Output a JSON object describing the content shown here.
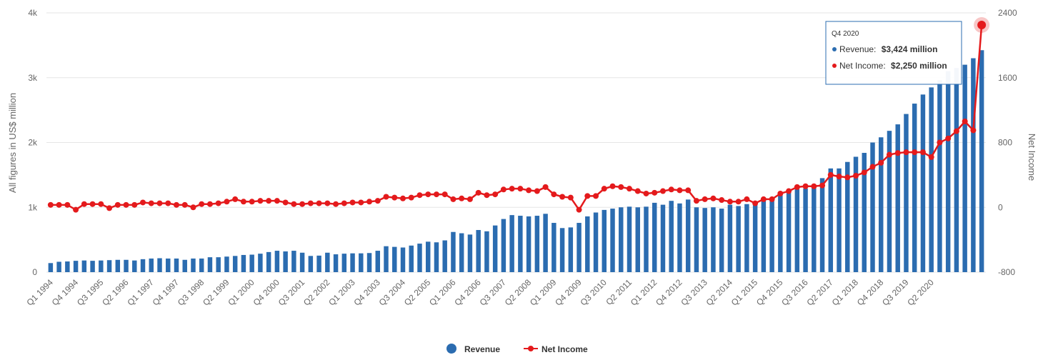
{
  "chart_data": {
    "type": "bar+line",
    "title": "",
    "y_left_label": "All figures in US$ million",
    "y_right_label": "Net Income",
    "y_left_ticks": [
      "0",
      "1k",
      "2k",
      "3k",
      "4k"
    ],
    "y_left_range": [
      0,
      4000
    ],
    "y_right_ticks": [
      "-800",
      "0",
      "800",
      "1600",
      "2400"
    ],
    "y_right_range": [
      -800,
      2400
    ],
    "grid": true,
    "legend_position": "bottom-center",
    "colors": {
      "revenue": "#2b6cb0",
      "net_income": "#e41a1c",
      "grid": "#e6e6e6"
    },
    "x_tick_labels": [
      "Q1 1994",
      "Q4 1994",
      "Q3 1995",
      "Q2 1996",
      "Q1 1997",
      "Q4 1997",
      "Q3 1998",
      "Q2 1999",
      "Q1 2000",
      "Q4 2000",
      "Q3 2001",
      "Q2 2002",
      "Q1 2003",
      "Q4 2003",
      "Q3 2004",
      "Q2 2005",
      "Q1 2006",
      "Q4 2006",
      "Q3 2007",
      "Q2 2008",
      "Q1 2009",
      "Q4 2009",
      "Q3 2010",
      "Q2 2011",
      "Q1 2012",
      "Q4 2012",
      "Q3 2013",
      "Q2 2014",
      "Q1 2015",
      "Q4 2015",
      "Q3 2016",
      "Q2 2017",
      "Q1 2018",
      "Q4 2018",
      "Q3 2019",
      "Q2 2020"
    ],
    "series": [
      {
        "name": "Revenue",
        "axis": "left",
        "kind": "bar",
        "values": [
          140,
          160,
          165,
          175,
          180,
          175,
          180,
          185,
          190,
          190,
          180,
          200,
          210,
          215,
          210,
          210,
          190,
          210,
          210,
          230,
          230,
          240,
          250,
          265,
          270,
          285,
          310,
          330,
          320,
          330,
          300,
          250,
          255,
          300,
          275,
          285,
          290,
          290,
          295,
          330,
          400,
          390,
          380,
          410,
          440,
          470,
          460,
          490,
          620,
          600,
          580,
          650,
          630,
          720,
          820,
          880,
          870,
          860,
          870,
          900,
          760,
          680,
          690,
          760,
          860,
          920,
          960,
          980,
          1000,
          1010,
          1000,
          1010,
          1070,
          1040,
          1100,
          1060,
          1120,
          1000,
          990,
          1000,
          980,
          1040,
          1020,
          1050,
          1080,
          1110,
          1150,
          1200,
          1240,
          1280,
          1290,
          1350,
          1450,
          1600,
          1600,
          1700,
          1780,
          1840,
          2000,
          2080,
          2180,
          2280,
          2440,
          2600,
          2740,
          2850,
          2960,
          3100,
          3150,
          3200,
          3300,
          3424
        ]
      },
      {
        "name": "Net Income",
        "axis": "right",
        "kind": "line",
        "values": [
          30,
          30,
          30,
          -30,
          40,
          40,
          40,
          -10,
          30,
          30,
          30,
          60,
          50,
          50,
          50,
          30,
          30,
          0,
          40,
          40,
          50,
          70,
          100,
          70,
          70,
          80,
          80,
          80,
          60,
          40,
          40,
          50,
          50,
          50,
          40,
          50,
          60,
          60,
          70,
          80,
          130,
          120,
          110,
          120,
          150,
          160,
          160,
          160,
          100,
          110,
          100,
          180,
          150,
          160,
          220,
          230,
          230,
          210,
          200,
          250,
          160,
          130,
          120,
          -30,
          140,
          140,
          230,
          260,
          250,
          230,
          200,
          170,
          180,
          200,
          220,
          210,
          210,
          80,
          100,
          110,
          90,
          70,
          70,
          100,
          50,
          100,
          100,
          170,
          200,
          250,
          260,
          260,
          270,
          400,
          380,
          370,
          390,
          430,
          500,
          550,
          650,
          670,
          680,
          680,
          680,
          620,
          800,
          850,
          940,
          1060,
          950,
          2250
        ]
      }
    ],
    "tooltip": {
      "period": "Q4 2020",
      "revenue_label": "Revenue:",
      "revenue_value": "$3,424 million",
      "net_income_label": "Net Income:",
      "net_income_value": "$2,250 million"
    },
    "legend": [
      {
        "name": "Revenue",
        "color": "#2b6cb0"
      },
      {
        "name": "Net Income",
        "color": "#e41a1c"
      }
    ]
  }
}
